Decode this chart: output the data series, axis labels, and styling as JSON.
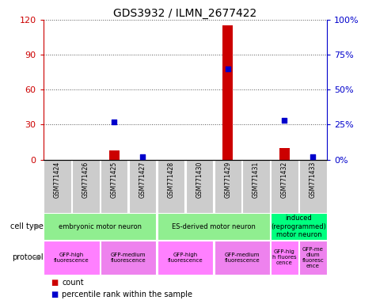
{
  "title": "GDS3932 / ILMN_2677422",
  "samples": [
    "GSM771424",
    "GSM771426",
    "GSM771425",
    "GSM771427",
    "GSM771428",
    "GSM771430",
    "GSM771429",
    "GSM771431",
    "GSM771432",
    "GSM771433"
  ],
  "counts": [
    0,
    0,
    8,
    0,
    0,
    0,
    115,
    0,
    10,
    0
  ],
  "percentiles": [
    0,
    0,
    27,
    2,
    0,
    0,
    65,
    0,
    28,
    2
  ],
  "cell_types": [
    {
      "label": "embryonic motor neuron",
      "start": 0,
      "end": 4,
      "color": "#90EE90"
    },
    {
      "label": "ES-derived motor neuron",
      "start": 4,
      "end": 8,
      "color": "#90EE90"
    },
    {
      "label": "induced\n(reprogrammed)\nmotor neuron",
      "start": 8,
      "end": 10,
      "color": "#00FF7F"
    }
  ],
  "protocols": [
    {
      "label": "GFP-high\nfluorescence",
      "start": 0,
      "end": 2,
      "color": "#FF80FF"
    },
    {
      "label": "GFP-medium\nfluorescence",
      "start": 2,
      "end": 4,
      "color": "#EE82EE"
    },
    {
      "label": "GFP-high\nfluorescence",
      "start": 4,
      "end": 6,
      "color": "#FF80FF"
    },
    {
      "label": "GFP-medium\nfluorescence",
      "start": 6,
      "end": 8,
      "color": "#EE82EE"
    },
    {
      "label": "GFP-hig\nh fluores\ncence",
      "start": 8,
      "end": 9,
      "color": "#FF80FF"
    },
    {
      "label": "GFP-me\ndium\nfluoresc\nence",
      "start": 9,
      "end": 10,
      "color": "#EE82EE"
    }
  ],
  "ylim_left": [
    0,
    120
  ],
  "ylim_right": [
    0,
    100
  ],
  "yticks_left": [
    0,
    30,
    60,
    90,
    120
  ],
  "yticks_right": [
    0,
    25,
    50,
    75,
    100
  ],
  "ytick_labels_right": [
    "0%",
    "25%",
    "50%",
    "75%",
    "100%"
  ],
  "bar_color": "#CC0000",
  "scatter_color": "#0000CC",
  "grid_color": "#555555",
  "bg_color": "#FFFFFF",
  "sample_bg": "#CCCCCC"
}
